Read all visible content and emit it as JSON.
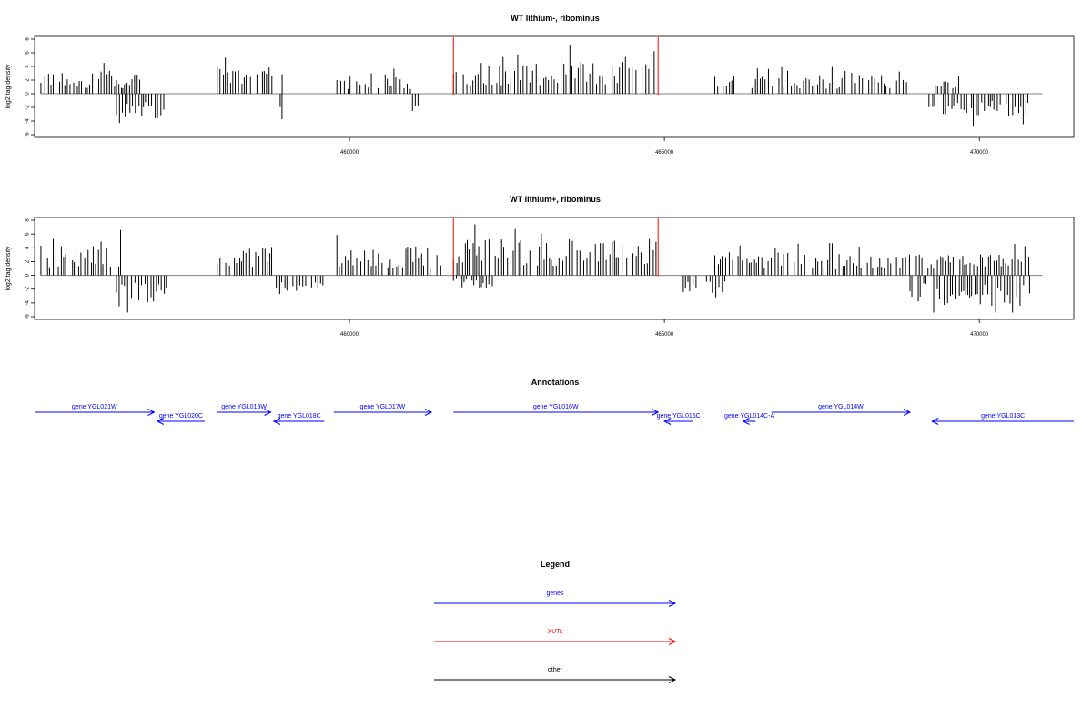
{
  "chart_data": [
    {
      "type": "bar",
      "title": "WT lithium-, ribominus",
      "ylabel": "log2 tag density",
      "ylim": [
        -6,
        8
      ],
      "yticks": [
        -6,
        -4,
        -2,
        0,
        2,
        4,
        6,
        8
      ],
      "xlim": [
        455000,
        471500
      ],
      "xticks": [
        460000,
        465000,
        470000
      ],
      "grid": false,
      "xut_markers": [
        461650,
        464900
      ],
      "x": [
        455100,
        471000
      ],
      "segments": [
        {
          "start": 455100,
          "end": 456400,
          "mean": 2.4,
          "strand": "+"
        },
        {
          "start": 456300,
          "end": 457100,
          "mean": -2.6,
          "strand": "-"
        },
        {
          "start": 456400,
          "end": 456700,
          "mean": 1.6,
          "strand": "+"
        },
        {
          "start": 457900,
          "end": 458800,
          "mean": 2.8,
          "strand": "+"
        },
        {
          "start": 458900,
          "end": 458950,
          "mean": -3.0,
          "strand": "-"
        },
        {
          "start": 458900,
          "end": 458950,
          "mean": 2.4,
          "strand": "+"
        },
        {
          "start": 459800,
          "end": 461000,
          "mean": 1.8,
          "strand": "+"
        },
        {
          "start": 461000,
          "end": 461100,
          "mean": -2.0,
          "strand": "-"
        },
        {
          "start": 461650,
          "end": 464900,
          "mean": 3.4,
          "strand": "+"
        },
        {
          "start": 465800,
          "end": 468900,
          "mean": 2.0,
          "strand": "+"
        },
        {
          "start": 469200,
          "end": 470800,
          "mean": -2.4,
          "strand": "-"
        },
        {
          "start": 469300,
          "end": 469700,
          "mean": 1.4,
          "strand": "+"
        }
      ]
    },
    {
      "type": "bar",
      "title": "WT lithium+, ribominus",
      "ylabel": "log2 tag density",
      "ylim": [
        -6,
        8
      ],
      "yticks": [
        -6,
        -4,
        -2,
        0,
        2,
        4,
        6,
        8
      ],
      "xlim": [
        455000,
        471500
      ],
      "xticks": [
        460000,
        465000,
        470000
      ],
      "grid": false,
      "xut_markers": [
        461650,
        464900
      ],
      "x": [
        455100,
        471000
      ],
      "segments": [
        {
          "start": 455100,
          "end": 456400,
          "mean": 3.2,
          "strand": "+"
        },
        {
          "start": 456300,
          "end": 457100,
          "mean": -2.8,
          "strand": "-"
        },
        {
          "start": 457900,
          "end": 458800,
          "mean": 3.4,
          "strand": "+"
        },
        {
          "start": 458800,
          "end": 459600,
          "mean": -1.6,
          "strand": "-"
        },
        {
          "start": 459800,
          "end": 461500,
          "mean": 3.0,
          "strand": "+"
        },
        {
          "start": 461650,
          "end": 464900,
          "mean": 3.8,
          "strand": "+"
        },
        {
          "start": 461650,
          "end": 462300,
          "mean": -1.4,
          "strand": "-"
        },
        {
          "start": 465300,
          "end": 466000,
          "mean": -2.0,
          "strand": "-"
        },
        {
          "start": 465800,
          "end": 468900,
          "mean": 2.4,
          "strand": "+"
        },
        {
          "start": 468900,
          "end": 470800,
          "mean": -3.2,
          "strand": "-"
        },
        {
          "start": 469000,
          "end": 470800,
          "mean": 2.2,
          "strand": "+"
        }
      ]
    }
  ],
  "annotations": {
    "title": "Annotations",
    "genes": [
      {
        "label": "gene YGL021W",
        "start": 455000,
        "end": 456900,
        "strand": "+"
      },
      {
        "label": "gene YGL020C",
        "start": 456950,
        "end": 457700,
        "strand": "-"
      },
      {
        "label": "gene YGL019W",
        "start": 457900,
        "end": 458750,
        "strand": "+"
      },
      {
        "label": "gene YGL018C",
        "start": 458800,
        "end": 459600,
        "strand": "-"
      },
      {
        "label": "gene YGL017W",
        "start": 459750,
        "end": 461300,
        "strand": "+"
      },
      {
        "label": "gene YGL016W",
        "start": 461650,
        "end": 464900,
        "strand": "+"
      },
      {
        "label": "gene YGL015C",
        "start": 465000,
        "end": 465450,
        "strand": "-"
      },
      {
        "label": "gene YGL014C-A",
        "start": 466250,
        "end": 466450,
        "strand": "-"
      },
      {
        "label": "gene YGL014W",
        "start": 466700,
        "end": 468900,
        "strand": "+"
      },
      {
        "label": "gene YGL013C",
        "start": 469250,
        "end": 471500,
        "strand": "-"
      }
    ]
  },
  "legend": {
    "title": "Legend",
    "items": [
      {
        "label": "genes",
        "color": "#0000ff"
      },
      {
        "label": "XUTs",
        "color": "#ff0000"
      },
      {
        "label": "other",
        "color": "#000000"
      }
    ]
  },
  "colors": {
    "gene": "#0000ff",
    "xut": "#ff0000",
    "signal": "#000000",
    "baseline": "#808080"
  }
}
